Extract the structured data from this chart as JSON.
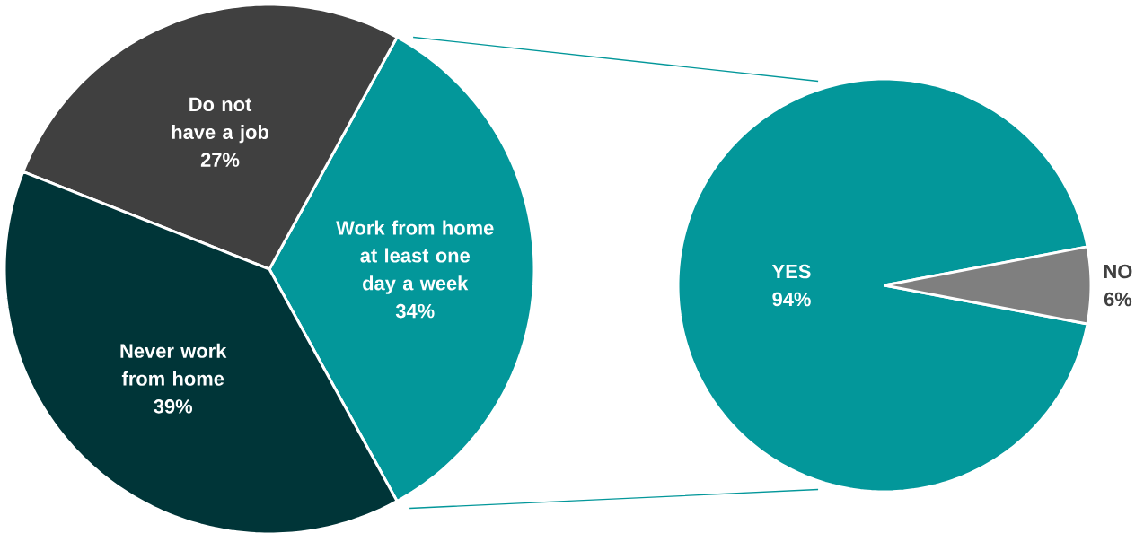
{
  "chart_data": [
    {
      "type": "pie",
      "categories": [
        "Work from home at least one day a week",
        "Do not have a job",
        "Never work from home"
      ],
      "values": [
        34,
        27,
        39
      ],
      "colors": [
        "#03979a",
        "#404040",
        "#003538"
      ],
      "value_labels": [
        "34%",
        "27%",
        "39%"
      ]
    },
    {
      "type": "pie",
      "categories": [
        "YES",
        "NO"
      ],
      "values": [
        94,
        6
      ],
      "colors": [
        "#03979a",
        "#7f7f7f"
      ],
      "value_labels": [
        "94%",
        "6%"
      ]
    }
  ]
}
